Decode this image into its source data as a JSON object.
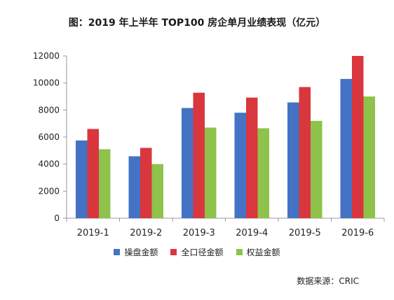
{
  "title": "图：2019 年上半年 TOP100 房企单月业绩表现（亿元）",
  "source": "数据来源：CRIC",
  "colors": {
    "s0": "#4472c4",
    "s1": "#d9363e",
    "s2": "#8ec24b"
  },
  "chart_data": {
    "type": "bar",
    "title": "图：2019 年上半年 TOP100 房企单月业绩表现（亿元）",
    "categories": [
      "2019-1",
      "2019-2",
      "2019-3",
      "2019-4",
      "2019-5",
      "2019-6"
    ],
    "series": [
      {
        "name": "操盘金额",
        "values": [
          5750,
          4580,
          8150,
          7800,
          8560,
          10300
        ]
      },
      {
        "name": "全口径金额",
        "values": [
          6600,
          5200,
          9280,
          8920,
          9700,
          12000
        ]
      },
      {
        "name": "权益金额",
        "values": [
          5100,
          4000,
          6700,
          6650,
          7200,
          9000
        ]
      }
    ],
    "ylim": [
      0,
      12000
    ],
    "yticks": [
      0,
      2000,
      4000,
      6000,
      8000,
      10000,
      12000
    ],
    "legend": "bottom",
    "grid": false
  }
}
